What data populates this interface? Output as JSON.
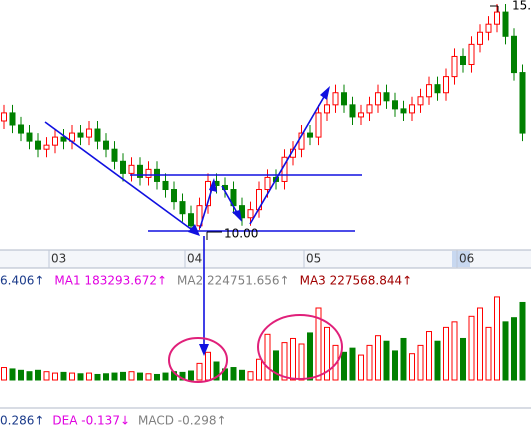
{
  "chart_data": {
    "type": "candlestick",
    "categories": [
      null,
      null,
      null,
      null,
      null,
      null,
      "03",
      null,
      null,
      null,
      null,
      null,
      null,
      null,
      null,
      null,
      null,
      null,
      null,
      null,
      null,
      null,
      "04",
      null,
      null,
      null,
      null,
      null,
      null,
      null,
      null,
      null,
      null,
      null,
      null,
      null,
      "05",
      null,
      null,
      null,
      null,
      null,
      null,
      null,
      null,
      null,
      null,
      null,
      null,
      null,
      null,
      null,
      null,
      null,
      "06",
      null,
      null,
      null,
      null,
      null,
      null,
      null
    ],
    "open": [
      12.7,
      12.9,
      12.6,
      12.4,
      12.2,
      12.0,
      12.1,
      12.3,
      12.2,
      12.4,
      12.3,
      12.5,
      12.2,
      12.0,
      11.7,
      11.4,
      11.6,
      11.3,
      11.5,
      11.2,
      11.0,
      10.7,
      10.4,
      10.1,
      10.6,
      11.2,
      11.1,
      11.0,
      10.6,
      10.3,
      10.5,
      11.0,
      11.3,
      11.2,
      11.8,
      12.0,
      12.4,
      12.3,
      12.9,
      13.1,
      13.4,
      13.1,
      12.8,
      12.9,
      13.1,
      13.4,
      13.2,
      13.0,
      12.9,
      13.1,
      13.3,
      13.6,
      13.4,
      13.8,
      14.3,
      14.1,
      14.6,
      14.9,
      15.1,
      15.4,
      14.8,
      13.9
    ],
    "high": [
      13.1,
      13.1,
      12.8,
      12.6,
      12.4,
      12.3,
      12.5,
      12.5,
      12.6,
      12.6,
      12.7,
      12.7,
      12.4,
      12.2,
      11.9,
      11.8,
      11.8,
      11.7,
      11.7,
      11.4,
      11.2,
      10.9,
      10.6,
      10.8,
      11.4,
      11.4,
      11.3,
      11.2,
      10.8,
      10.7,
      11.2,
      11.5,
      11.5,
      12.0,
      12.2,
      12.6,
      12.6,
      13.1,
      13.3,
      13.6,
      13.6,
      13.3,
      13.1,
      13.3,
      13.6,
      13.6,
      13.4,
      13.2,
      13.3,
      13.5,
      13.8,
      13.8,
      14.0,
      14.5,
      14.5,
      14.8,
      15.1,
      15.3,
      15.6,
      15.6,
      15.0,
      14.1
    ],
    "low": [
      12.5,
      12.4,
      12.2,
      12.0,
      11.8,
      11.8,
      11.9,
      12.0,
      12.0,
      12.1,
      12.1,
      12.0,
      11.8,
      11.5,
      11.2,
      11.2,
      11.1,
      11.1,
      11.0,
      10.8,
      10.5,
      10.2,
      10.0,
      10.0,
      10.4,
      10.9,
      10.8,
      10.4,
      10.1,
      10.1,
      10.3,
      10.8,
      11.0,
      11.0,
      11.6,
      11.8,
      12.1,
      12.1,
      12.7,
      12.9,
      12.9,
      12.6,
      12.6,
      12.7,
      12.9,
      13.0,
      12.8,
      12.7,
      12.7,
      12.9,
      13.1,
      13.2,
      13.2,
      13.6,
      13.9,
      13.9,
      14.4,
      14.7,
      14.9,
      14.6,
      13.7,
      12.2
    ],
    "close": [
      12.9,
      12.6,
      12.4,
      12.2,
      12.0,
      12.1,
      12.3,
      12.2,
      12.4,
      12.3,
      12.5,
      12.2,
      12.0,
      11.7,
      11.4,
      11.6,
      11.3,
      11.5,
      11.2,
      11.0,
      10.7,
      10.4,
      10.1,
      10.6,
      11.2,
      11.1,
      11.0,
      10.6,
      10.3,
      10.5,
      11.0,
      11.3,
      11.2,
      11.8,
      12.0,
      12.4,
      12.3,
      12.9,
      13.1,
      13.4,
      13.1,
      12.8,
      12.9,
      13.1,
      13.4,
      13.2,
      13.0,
      12.9,
      13.1,
      13.3,
      13.6,
      13.4,
      13.8,
      14.3,
      14.1,
      14.6,
      14.9,
      15.1,
      15.4,
      14.8,
      13.9,
      12.4
    ],
    "volume": [
      90000,
      80000,
      70000,
      60000,
      70000,
      60000,
      50000,
      55000,
      50000,
      45000,
      50000,
      40000,
      45000,
      50000,
      55000,
      60000,
      50000,
      45000,
      40000,
      50000,
      60000,
      55000,
      65000,
      120000,
      200000,
      130000,
      80000,
      90000,
      70000,
      60000,
      150000,
      330000,
      210000,
      270000,
      300000,
      260000,
      340000,
      520000,
      380000,
      250000,
      200000,
      230000,
      180000,
      250000,
      320000,
      280000,
      210000,
      300000,
      190000,
      250000,
      350000,
      280000,
      380000,
      420000,
      300000,
      460000,
      520000,
      380000,
      600000,
      420000,
      450000,
      560000
    ],
    "up_color": "#ff0000",
    "down_color": "#008000",
    "ylim": [
      9.5,
      15.7
    ],
    "volume_ylim": [
      0,
      650000
    ],
    "annotations": [
      "15.",
      "10.00"
    ],
    "volume_legend": [
      {
        "text": "6.406↑",
        "color": "#1a3a8a"
      },
      {
        "text": "MA1 183293.672↑",
        "color": "#e000e0"
      },
      {
        "text": "MA2 224751.656↑",
        "color": "#808080"
      },
      {
        "text": "MA3 227568.844↑",
        "color": "#a00000"
      }
    ],
    "macd_legend": [
      {
        "text": "0.286↑",
        "color": "#1a3a8a"
      },
      {
        "text": "DEA -0.137↓",
        "color": "#e000e0"
      },
      {
        "text": "MACD -0.298↑",
        "color": "#808080"
      }
    ]
  }
}
